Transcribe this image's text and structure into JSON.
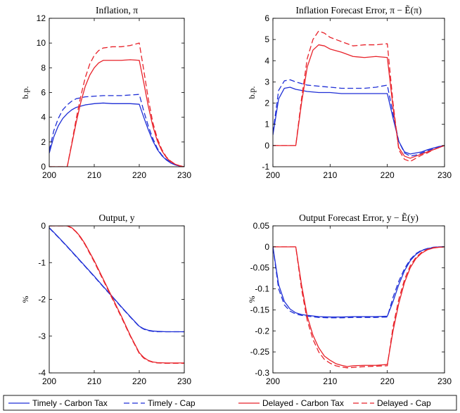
{
  "colors": {
    "timely": "#1f2fd6",
    "delayed": "#e8222a"
  },
  "legend": {
    "entries": [
      {
        "label": "Timely - Carbon Tax",
        "color": "#1f2fd6",
        "dash": "solid"
      },
      {
        "label": "Timely - Cap",
        "color": "#1f2fd6",
        "dash": "dashed"
      },
      {
        "label": "Delayed - Carbon Tax",
        "color": "#e8222a",
        "dash": "solid"
      },
      {
        "label": "Delayed - Cap",
        "color": "#e8222a",
        "dash": "dashed"
      }
    ]
  },
  "chart_data": [
    {
      "type": "line",
      "title": "Inflation, π",
      "ylabel": "b.p.",
      "xlim": [
        200,
        230
      ],
      "ylim": [
        0,
        12
      ],
      "xticks": [
        200,
        210,
        220,
        230
      ],
      "yticks": [
        0,
        2,
        4,
        6,
        8,
        10,
        12
      ],
      "ytick_labels": [
        "0",
        "2",
        "4",
        "6",
        "8",
        "10",
        "12"
      ],
      "series": [
        {
          "name": "Timely - Carbon Tax",
          "color": "#1f2fd6",
          "dash": "solid",
          "x": [
            200,
            201,
            202,
            203,
            204,
            205,
            206,
            208,
            210,
            212,
            214,
            216,
            218,
            220,
            221,
            222,
            223,
            224,
            225,
            226,
            227,
            228,
            229,
            230
          ],
          "y": [
            1.1,
            2.4,
            3.3,
            3.9,
            4.3,
            4.6,
            4.8,
            5.0,
            5.1,
            5.15,
            5.1,
            5.1,
            5.1,
            5.05,
            4.0,
            3.0,
            2.1,
            1.4,
            0.9,
            0.55,
            0.3,
            0.15,
            0.05,
            0.0
          ]
        },
        {
          "name": "Timely - Cap",
          "color": "#1f2fd6",
          "dash": "dashed",
          "x": [
            200,
            201,
            202,
            203,
            204,
            205,
            206,
            208,
            210,
            212,
            214,
            216,
            218,
            220,
            221,
            222,
            223,
            224,
            225,
            226,
            227,
            228,
            229,
            230
          ],
          "y": [
            1.3,
            2.9,
            3.9,
            4.6,
            5.0,
            5.3,
            5.5,
            5.65,
            5.7,
            5.75,
            5.75,
            5.75,
            5.8,
            5.85,
            4.5,
            3.3,
            2.3,
            1.5,
            0.95,
            0.6,
            0.35,
            0.15,
            0.05,
            0.0
          ]
        },
        {
          "name": "Delayed - Carbon Tax",
          "color": "#e8222a",
          "dash": "solid",
          "x": [
            200,
            204,
            205,
            206,
            207,
            208,
            209,
            210,
            211,
            212,
            214,
            216,
            218,
            220,
            221,
            222,
            223,
            224,
            225,
            226,
            227,
            228,
            229,
            230
          ],
          "y": [
            0,
            0,
            1.8,
            3.6,
            5.2,
            6.5,
            7.4,
            8.0,
            8.4,
            8.6,
            8.6,
            8.6,
            8.65,
            8.6,
            6.8,
            4.9,
            3.3,
            2.1,
            1.3,
            0.75,
            0.4,
            0.2,
            0.08,
            0.0
          ]
        },
        {
          "name": "Delayed - Cap",
          "color": "#e8222a",
          "dash": "dashed",
          "x": [
            200,
            204,
            205,
            206,
            207,
            208,
            209,
            210,
            211,
            212,
            214,
            216,
            218,
            220,
            221,
            222,
            223,
            224,
            225,
            226,
            227,
            228,
            229,
            230
          ],
          "y": [
            0,
            0,
            1.9,
            3.9,
            5.7,
            7.2,
            8.3,
            9.0,
            9.4,
            9.6,
            9.7,
            9.7,
            9.8,
            10.0,
            7.8,
            5.5,
            3.6,
            2.3,
            1.4,
            0.8,
            0.45,
            0.2,
            0.08,
            0.0
          ]
        }
      ]
    },
    {
      "type": "line",
      "title": "Inflation Forecast Error, π − Ẽ(π)",
      "ylabel": "b.p.",
      "xlim": [
        200,
        230
      ],
      "ylim": [
        -1,
        6
      ],
      "xticks": [
        200,
        210,
        220,
        230
      ],
      "yticks": [
        -1,
        0,
        1,
        2,
        3,
        4,
        5,
        6
      ],
      "ytick_labels": [
        "-1",
        "0",
        "1",
        "2",
        "3",
        "4",
        "5",
        "6"
      ],
      "series": [
        {
          "name": "Timely - Carbon Tax",
          "color": "#1f2fd6",
          "dash": "solid",
          "x": [
            200,
            201,
            202,
            203,
            204,
            206,
            208,
            210,
            212,
            214,
            216,
            218,
            220,
            221,
            222,
            223,
            224,
            225,
            226,
            227,
            228,
            229,
            230
          ],
          "y": [
            0.5,
            2.2,
            2.7,
            2.75,
            2.65,
            2.55,
            2.5,
            2.5,
            2.45,
            2.45,
            2.45,
            2.45,
            2.45,
            1.3,
            0.2,
            -0.3,
            -0.4,
            -0.35,
            -0.3,
            -0.2,
            -0.12,
            -0.05,
            0.0
          ]
        },
        {
          "name": "Timely - Cap",
          "color": "#1f2fd6",
          "dash": "dashed",
          "x": [
            200,
            201,
            202,
            203,
            204,
            206,
            208,
            210,
            212,
            214,
            216,
            218,
            220,
            221,
            222,
            223,
            224,
            225,
            226,
            227,
            228,
            229,
            230
          ],
          "y": [
            0.6,
            2.6,
            3.05,
            3.1,
            3.0,
            2.85,
            2.8,
            2.75,
            2.7,
            2.7,
            2.7,
            2.75,
            2.85,
            1.5,
            0.2,
            -0.35,
            -0.5,
            -0.45,
            -0.35,
            -0.25,
            -0.15,
            -0.05,
            0.0
          ]
        },
        {
          "name": "Delayed - Carbon Tax",
          "color": "#e8222a",
          "dash": "solid",
          "x": [
            200,
            204,
            205,
            206,
            207,
            208,
            209,
            210,
            212,
            214,
            216,
            218,
            220,
            221,
            222,
            223,
            224,
            225,
            226,
            227,
            228,
            229,
            230
          ],
          "y": [
            0,
            0,
            2.0,
            3.7,
            4.5,
            4.75,
            4.7,
            4.55,
            4.4,
            4.2,
            4.15,
            4.2,
            4.15,
            1.8,
            -0.1,
            -0.5,
            -0.6,
            -0.5,
            -0.4,
            -0.3,
            -0.2,
            -0.1,
            0.0
          ]
        },
        {
          "name": "Delayed - Cap",
          "color": "#e8222a",
          "dash": "dashed",
          "x": [
            200,
            204,
            205,
            206,
            207,
            208,
            209,
            210,
            212,
            214,
            216,
            218,
            220,
            221,
            222,
            223,
            224,
            225,
            226,
            227,
            228,
            229,
            230
          ],
          "y": [
            0,
            0,
            2.2,
            4.1,
            5.0,
            5.4,
            5.3,
            5.1,
            4.9,
            4.7,
            4.75,
            4.75,
            4.8,
            2.0,
            -0.2,
            -0.65,
            -0.75,
            -0.6,
            -0.45,
            -0.35,
            -0.2,
            -0.1,
            0.0
          ]
        }
      ]
    },
    {
      "type": "line",
      "title": "Output, y",
      "ylabel": "%",
      "xlim": [
        200,
        230
      ],
      "ylim": [
        -4,
        0
      ],
      "xticks": [
        200,
        210,
        220,
        230
      ],
      "yticks": [
        -4,
        -3,
        -2,
        -1,
        0
      ],
      "ytick_labels": [
        "-4",
        "-3",
        "-2",
        "-1",
        "0"
      ],
      "series": [
        {
          "name": "Timely - Carbon Tax",
          "color": "#1f2fd6",
          "dash": "solid",
          "x": [
            200,
            202,
            204,
            206,
            208,
            210,
            212,
            214,
            216,
            218,
            220,
            221,
            222,
            223,
            224,
            226,
            228,
            230
          ],
          "y": [
            -0.05,
            -0.3,
            -0.56,
            -0.83,
            -1.1,
            -1.37,
            -1.65,
            -1.92,
            -2.2,
            -2.47,
            -2.73,
            -2.8,
            -2.84,
            -2.86,
            -2.87,
            -2.88,
            -2.88,
            -2.88
          ]
        },
        {
          "name": "Timely - Cap",
          "color": "#1f2fd6",
          "dash": "dashed",
          "x": [
            200,
            202,
            204,
            206,
            208,
            210,
            212,
            214,
            216,
            218,
            220,
            221,
            222,
            223,
            224,
            226,
            228,
            230
          ],
          "y": [
            -0.06,
            -0.31,
            -0.57,
            -0.84,
            -1.11,
            -1.38,
            -1.66,
            -1.93,
            -2.21,
            -2.48,
            -2.74,
            -2.81,
            -2.85,
            -2.87,
            -2.88,
            -2.88,
            -2.88,
            -2.88
          ]
        },
        {
          "name": "Delayed - Carbon Tax",
          "color": "#e8222a",
          "dash": "solid",
          "x": [
            200,
            204,
            205,
            206,
            207,
            208,
            210,
            212,
            214,
            216,
            218,
            220,
            221,
            222,
            223,
            224,
            226,
            228,
            230
          ],
          "y": [
            0,
            0,
            -0.05,
            -0.16,
            -0.31,
            -0.5,
            -0.95,
            -1.45,
            -1.95,
            -2.45,
            -2.98,
            -3.45,
            -3.58,
            -3.66,
            -3.7,
            -3.72,
            -3.73,
            -3.73,
            -3.73
          ]
        },
        {
          "name": "Delayed - Cap",
          "color": "#e8222a",
          "dash": "dashed",
          "x": [
            200,
            204,
            205,
            206,
            207,
            208,
            210,
            212,
            214,
            216,
            218,
            220,
            221,
            222,
            223,
            224,
            226,
            228,
            230
          ],
          "y": [
            0,
            0,
            -0.06,
            -0.17,
            -0.33,
            -0.52,
            -0.98,
            -1.48,
            -1.98,
            -2.48,
            -3.0,
            -3.47,
            -3.6,
            -3.67,
            -3.71,
            -3.73,
            -3.74,
            -3.74,
            -3.74
          ]
        }
      ]
    },
    {
      "type": "line",
      "title": "Output Forecast Error, y − Ẽ(y)",
      "ylabel": "%",
      "xlim": [
        200,
        230
      ],
      "ylim": [
        -0.3,
        0.05
      ],
      "xticks": [
        200,
        210,
        220,
        230
      ],
      "yticks": [
        -0.3,
        -0.25,
        -0.2,
        -0.15,
        -0.1,
        -0.05,
        0,
        0.05
      ],
      "ytick_labels": [
        "-0.3",
        "-0.25",
        "-0.2",
        "-0.15",
        "-0.1",
        "-0.05",
        "0",
        "0.05"
      ],
      "series": [
        {
          "name": "Timely - Carbon Tax",
          "color": "#1f2fd6",
          "dash": "solid",
          "x": [
            200,
            201,
            202,
            203,
            204,
            205,
            206,
            208,
            210,
            212,
            214,
            216,
            218,
            220,
            221,
            222,
            223,
            224,
            225,
            226,
            227,
            228,
            229,
            230
          ],
          "y": [
            0,
            -0.09,
            -0.13,
            -0.148,
            -0.157,
            -0.161,
            -0.163,
            -0.166,
            -0.167,
            -0.167,
            -0.166,
            -0.166,
            -0.166,
            -0.165,
            -0.13,
            -0.09,
            -0.057,
            -0.033,
            -0.018,
            -0.009,
            -0.004,
            -0.002,
            0,
            0
          ]
        },
        {
          "name": "Timely - Cap",
          "color": "#1f2fd6",
          "dash": "dashed",
          "x": [
            200,
            201,
            202,
            203,
            204,
            205,
            206,
            208,
            210,
            212,
            214,
            216,
            218,
            220,
            221,
            222,
            223,
            224,
            225,
            226,
            227,
            228,
            229,
            230
          ],
          "y": [
            0,
            -0.1,
            -0.138,
            -0.153,
            -0.16,
            -0.163,
            -0.165,
            -0.168,
            -0.169,
            -0.169,
            -0.168,
            -0.168,
            -0.168,
            -0.167,
            -0.12,
            -0.082,
            -0.052,
            -0.03,
            -0.016,
            -0.008,
            -0.004,
            -0.001,
            0,
            0
          ]
        },
        {
          "name": "Delayed - Carbon Tax",
          "color": "#e8222a",
          "dash": "solid",
          "x": [
            200,
            204,
            205,
            206,
            207,
            208,
            209,
            210,
            211,
            212,
            213,
            214,
            216,
            218,
            220,
            221,
            222,
            223,
            224,
            225,
            226,
            227,
            228,
            229,
            230
          ],
          "y": [
            0,
            0,
            -0.09,
            -0.165,
            -0.21,
            -0.24,
            -0.26,
            -0.27,
            -0.278,
            -0.282,
            -0.285,
            -0.283,
            -0.282,
            -0.282,
            -0.28,
            -0.2,
            -0.135,
            -0.085,
            -0.05,
            -0.028,
            -0.015,
            -0.007,
            -0.003,
            -0.001,
            0
          ]
        },
        {
          "name": "Delayed - Cap",
          "color": "#e8222a",
          "dash": "dashed",
          "x": [
            200,
            204,
            205,
            206,
            207,
            208,
            209,
            210,
            211,
            212,
            213,
            214,
            216,
            218,
            220,
            221,
            222,
            223,
            224,
            225,
            226,
            227,
            228,
            229,
            230
          ],
          "y": [
            0,
            0,
            -0.1,
            -0.175,
            -0.22,
            -0.25,
            -0.268,
            -0.277,
            -0.283,
            -0.286,
            -0.288,
            -0.287,
            -0.285,
            -0.284,
            -0.283,
            -0.19,
            -0.125,
            -0.078,
            -0.045,
            -0.025,
            -0.013,
            -0.006,
            -0.002,
            -0.001,
            0
          ]
        }
      ]
    }
  ]
}
